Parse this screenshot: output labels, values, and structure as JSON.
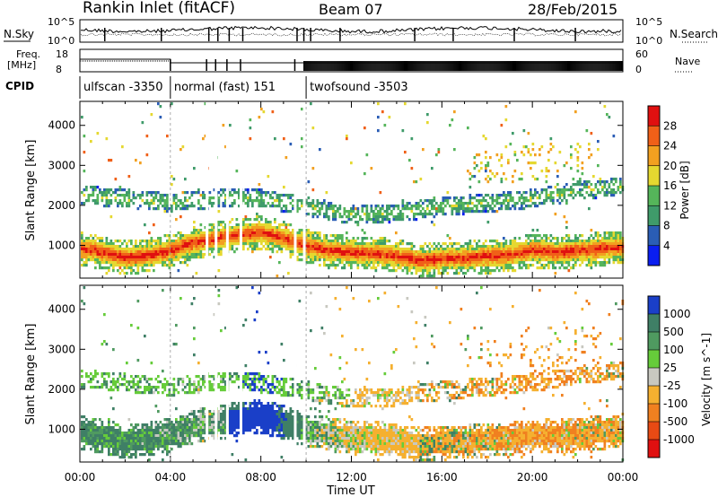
{
  "header": {
    "station": "Rankin Inlet (fitACF)",
    "beam": "Beam 07",
    "date": "28/Feb/2015"
  },
  "panels": {
    "nsky_label": "N.Sky",
    "nsearch_label": "N.Search",
    "nsky_ticks": [
      "10^5",
      "10^0"
    ],
    "nsearch_ticks": [
      "10^5",
      "10^0"
    ],
    "freq_label": "Freq.",
    "freq_unit": "[MHz]",
    "freq_ticks": [
      "18",
      "8"
    ],
    "nave_label": "Nave",
    "nave_ticks": [
      "60",
      "0"
    ],
    "cpid_label": "CPID",
    "cpid_segments": [
      {
        "label": "ulfscan -3350",
        "start_hour": 0.0,
        "end_hour": 4.0
      },
      {
        "label": "normal (fast) 151",
        "start_hour": 4.0,
        "end_hour": 10.0
      },
      {
        "label": "twofsound -3503",
        "start_hour": 10.0,
        "end_hour": 24.0
      }
    ]
  },
  "axes": {
    "ylabel": "Slant Range [km]",
    "yticks": [
      "1000",
      "2000",
      "3000",
      "4000"
    ],
    "xticks": [
      "00:00",
      "04:00",
      "08:00",
      "12:00",
      "16:00",
      "20:00",
      "00:00"
    ],
    "xlabel": "Time UT"
  },
  "colorbars": {
    "power": {
      "title": "Power [dB]",
      "ticks": [
        "4",
        "8",
        "12",
        "16",
        "20",
        "24",
        "28"
      ],
      "colors": [
        "#0a1ef0",
        "#2a5db5",
        "#3f9b6a",
        "#55b55a",
        "#e5d830",
        "#f2a020",
        "#f06018",
        "#e01010"
      ]
    },
    "velocity": {
      "title": "Velocity [m s^-1]",
      "ticks": [
        "1000",
        "500",
        "100",
        "25",
        "-25",
        "-100",
        "-500",
        "-1000"
      ],
      "colors": [
        "#1a3fc8",
        "#3f7f66",
        "#4f9a60",
        "#66cc3a",
        "#c8c8c0",
        "#f5b030",
        "#f08020",
        "#e84a14",
        "#e01010"
      ]
    }
  },
  "chart_data": {
    "type": "heatmap",
    "title": "Rankin Inlet (fitACF) Beam 07 28/Feb/2015",
    "xlabel": "Time UT",
    "ylabel": "Slant Range [km]",
    "x_range_hours": [
      0,
      24
    ],
    "y_range_km": [
      180,
      4600
    ],
    "power_db_range": [
      0,
      30
    ],
    "velocity_range": [
      -1000,
      1000
    ],
    "main_band_center_km": [
      [
        0,
        950
      ],
      [
        1,
        850
      ],
      [
        2,
        720
      ],
      [
        3,
        780
      ],
      [
        4,
        900
      ],
      [
        5,
        1100
      ],
      [
        6,
        1200
      ],
      [
        7,
        1300
      ],
      [
        8,
        1350
      ],
      [
        9,
        1200
      ],
      [
        10,
        1000
      ],
      [
        11,
        900
      ],
      [
        12,
        850
      ],
      [
        13,
        820
      ],
      [
        14,
        760
      ],
      [
        15,
        650
      ],
      [
        16,
        700
      ],
      [
        17,
        720
      ],
      [
        18,
        750
      ],
      [
        19,
        800
      ],
      [
        20,
        900
      ],
      [
        21,
        850
      ],
      [
        22,
        900
      ],
      [
        23,
        950
      ],
      [
        24,
        1000
      ]
    ],
    "main_band_power_db": 28,
    "upper_band_center_km": [
      [
        0,
        2300
      ],
      [
        2,
        2200
      ],
      [
        4,
        2100
      ],
      [
        6,
        2200
      ],
      [
        8,
        2200
      ],
      [
        10,
        2000
      ],
      [
        12,
        1800
      ],
      [
        14,
        1850
      ],
      [
        16,
        2000
      ],
      [
        18,
        2100
      ],
      [
        20,
        2200
      ],
      [
        22,
        2400
      ],
      [
        24,
        2500
      ]
    ],
    "upper_band_power_db": 14,
    "mean_velocity_by_hour": [
      [
        0,
        150
      ],
      [
        2,
        120
      ],
      [
        4,
        100
      ],
      [
        6,
        0
      ],
      [
        8,
        800
      ],
      [
        10,
        50
      ],
      [
        12,
        -100
      ],
      [
        14,
        -150
      ],
      [
        16,
        -200
      ],
      [
        18,
        -300
      ],
      [
        20,
        -500
      ],
      [
        22,
        -400
      ],
      [
        24,
        -300
      ]
    ]
  }
}
